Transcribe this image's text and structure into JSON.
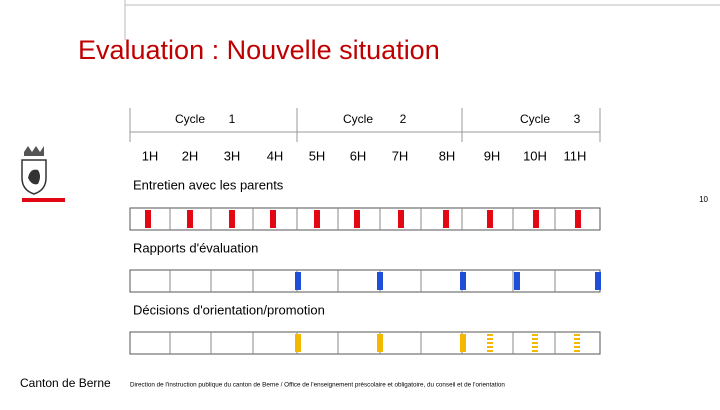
{
  "header": {
    "title": "Evaluation : Nouvelle situation"
  },
  "cycles": [
    {
      "label": "Cycle",
      "number": "1"
    },
    {
      "label": "Cycle",
      "number": "2"
    },
    {
      "label": "Cycle",
      "number": "3"
    }
  ],
  "grades": [
    "1H",
    "2H",
    "3H",
    "4H",
    "5H",
    "6H",
    "7H",
    "8H",
    "9H",
    "10H",
    "11H"
  ],
  "rows": [
    {
      "label": "Entretien avec les parents"
    },
    {
      "label": "Rapports d'évaluation"
    },
    {
      "label": "Décisions d'orientation/promotion"
    }
  ],
  "page_number": "10",
  "footer": {
    "organization": "Canton de Berne",
    "department": "Direction de l'instruction publique du canton de Berne / Office de l'enseignement préscolaire et obligatoire, du conseil et de l'orientation"
  }
}
